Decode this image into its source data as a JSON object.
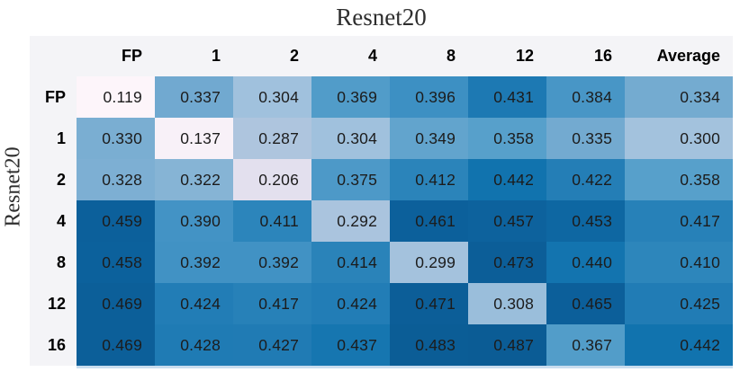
{
  "chart_data": {
    "type": "heatmap",
    "title": "Resnet20",
    "y_axis_label": "Resnet20",
    "columns": [
      "FP",
      "1",
      "2",
      "4",
      "8",
      "12",
      "16",
      "Average"
    ],
    "row_labels": [
      "FP",
      "1",
      "2",
      "4",
      "8",
      "12",
      "16"
    ],
    "values": [
      [
        "0.119",
        "0.337",
        "0.304",
        "0.369",
        "0.396",
        "0.431",
        "0.384",
        "0.334"
      ],
      [
        "0.330",
        "0.137",
        "0.287",
        "0.304",
        "0.349",
        "0.358",
        "0.335",
        "0.300"
      ],
      [
        "0.328",
        "0.322",
        "0.206",
        "0.375",
        "0.412",
        "0.442",
        "0.422",
        "0.358"
      ],
      [
        "0.459",
        "0.390",
        "0.411",
        "0.292",
        "0.461",
        "0.457",
        "0.453",
        "0.417"
      ],
      [
        "0.458",
        "0.392",
        "0.392",
        "0.414",
        "0.299",
        "0.473",
        "0.440",
        "0.410"
      ],
      [
        "0.469",
        "0.424",
        "0.417",
        "0.424",
        "0.471",
        "0.308",
        "0.465",
        "0.425"
      ],
      [
        "0.469",
        "0.428",
        "0.427",
        "0.437",
        "0.483",
        "0.487",
        "0.367",
        "0.442"
      ]
    ],
    "value_range": [
      0.119,
      0.487
    ],
    "colormap": [
      {
        "value": 0.119,
        "color": "#fdf5fa"
      },
      {
        "value": 0.206,
        "color": "#e3e0ee"
      },
      {
        "value": 0.287,
        "color": "#aec5de"
      },
      {
        "value": 0.304,
        "color": "#a0c1dd"
      },
      {
        "value": 0.335,
        "color": "#73aad0"
      },
      {
        "value": 0.358,
        "color": "#57a0cb"
      },
      {
        "value": 0.384,
        "color": "#4896c6"
      },
      {
        "value": 0.396,
        "color": "#3d90c3"
      },
      {
        "value": 0.412,
        "color": "#2b84ba"
      },
      {
        "value": 0.431,
        "color": "#1d79b3"
      },
      {
        "value": 0.442,
        "color": "#1173ae"
      },
      {
        "value": 0.459,
        "color": "#0c609b"
      },
      {
        "value": 0.487,
        "color": "#0b5c95"
      }
    ],
    "header_bg": "#f4f4f7",
    "text_color": "#1c1c1c"
  }
}
